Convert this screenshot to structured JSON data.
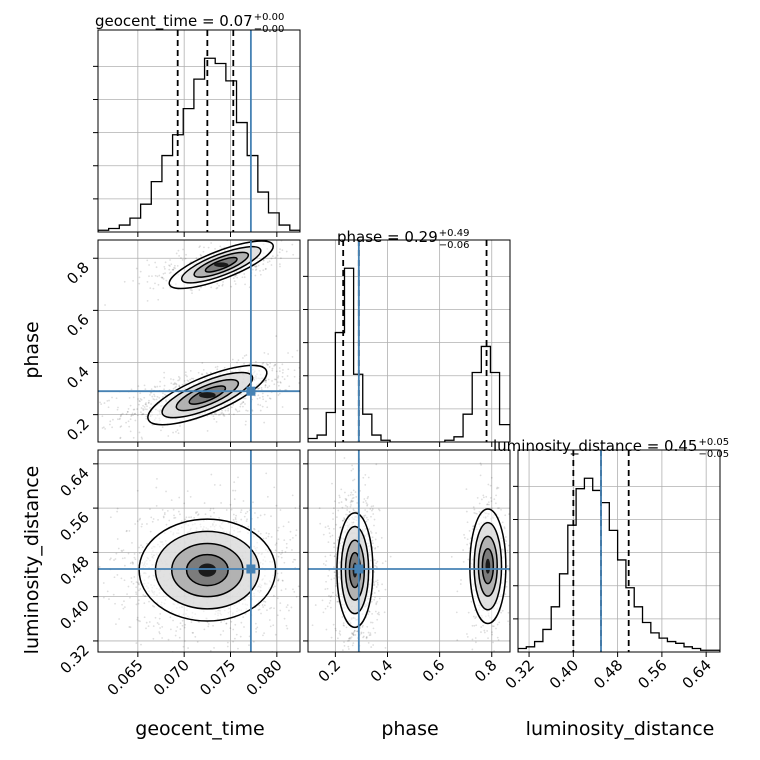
{
  "chart_data": {
    "type": "corner",
    "parameters": [
      "geocent_time",
      "phase",
      "luminosity_distance"
    ],
    "truth": {
      "geocent_time": 0.0772,
      "phase": 0.29,
      "luminosity_distance": 0.45
    },
    "titles": [
      {
        "param": "geocent_time",
        "main": "geocent_time = 0.07",
        "sup": "+0.00",
        "sub": "−0.00"
      },
      {
        "param": "phase",
        "main": "phase = 0.29",
        "sup": "+0.49",
        "sub": "−0.06"
      },
      {
        "param": "luminosity_distance",
        "main": "luminosity_distance = 0.45",
        "sup": "+0.05",
        "sub": "−0.05"
      }
    ],
    "axis_labels": {
      "x": [
        "geocent_time",
        "phase",
        "luminosity_distance"
      ],
      "y": [
        "phase",
        "luminosity_distance"
      ]
    },
    "ticks": {
      "geocent_time": {
        "values": [
          0.065,
          0.07,
          0.075,
          0.08
        ],
        "labels": [
          "0.065",
          "0.070",
          "0.075",
          "0.080"
        ],
        "range": [
          0.0607,
          0.0825
        ]
      },
      "phase": {
        "values": [
          0.2,
          0.4,
          0.6,
          0.8
        ],
        "labels": [
          "0.2",
          "0.4",
          "0.6",
          "0.8"
        ],
        "range": [
          0.095,
          0.87
        ]
      },
      "luminosity_distance": {
        "values": [
          0.32,
          0.4,
          0.48,
          0.56,
          0.64
        ],
        "labels": [
          "0.32",
          "0.40",
          "0.48",
          "0.56",
          "0.64"
        ],
        "range": [
          0.3,
          0.665
        ]
      }
    },
    "quantiles": {
      "geocent_time": [
        0.0693,
        0.0725,
        0.0753
      ],
      "phase": [
        0.23,
        0.29,
        0.78
      ],
      "luminosity_distance": [
        0.4,
        0.45,
        0.5
      ]
    },
    "histograms": {
      "geocent_time": {
        "edges": [
          0.0607,
          0.06185,
          0.063,
          0.06415,
          0.0653,
          0.06645,
          0.0676,
          0.06875,
          0.0699,
          0.07105,
          0.0722,
          0.07335,
          0.0745,
          0.07565,
          0.0768,
          0.07795,
          0.0791,
          0.08025,
          0.0814,
          0.0825
        ],
        "counts": [
          0.01,
          0.02,
          0.04,
          0.08,
          0.16,
          0.29,
          0.44,
          0.56,
          0.71,
          0.88,
          1.0,
          0.97,
          0.87,
          0.63,
          0.44,
          0.23,
          0.11,
          0.04,
          0.01
        ]
      },
      "phase": {
        "edges": [
          0.095,
          0.13,
          0.165,
          0.2,
          0.235,
          0.27,
          0.305,
          0.34,
          0.375,
          0.41,
          0.445,
          0.48,
          0.515,
          0.55,
          0.585,
          0.62,
          0.655,
          0.69,
          0.725,
          0.76,
          0.795,
          0.83,
          0.87
        ],
        "counts": [
          0.02,
          0.04,
          0.17,
          0.63,
          1.0,
          0.39,
          0.16,
          0.04,
          0.01,
          0.0,
          0.0,
          0.0,
          0.0,
          0.0,
          0.0,
          0.01,
          0.03,
          0.16,
          0.4,
          0.55,
          0.4,
          0.1
        ]
      },
      "luminosity_distance": {
        "edges": [
          0.3,
          0.315,
          0.33,
          0.345,
          0.36,
          0.375,
          0.39,
          0.405,
          0.42,
          0.435,
          0.45,
          0.465,
          0.48,
          0.495,
          0.51,
          0.525,
          0.54,
          0.555,
          0.57,
          0.585,
          0.6,
          0.615,
          0.63,
          0.645,
          0.665
        ],
        "counts": [
          0.02,
          0.03,
          0.06,
          0.13,
          0.26,
          0.45,
          0.73,
          0.94,
          1.0,
          0.93,
          0.86,
          0.7,
          0.53,
          0.37,
          0.26,
          0.17,
          0.11,
          0.08,
          0.06,
          0.05,
          0.03,
          0.02,
          0.01,
          0.01
        ]
      }
    },
    "density": {
      "phase_vs_geocent_time": {
        "modes": [
          {
            "x": 0.0725,
            "y": 0.275,
            "sx": 0.003,
            "sy": 0.04,
            "rho": 0.55,
            "weight": 0.72
          },
          {
            "x": 0.074,
            "y": 0.775,
            "sx": 0.0026,
            "sy": 0.03,
            "rho": 0.5,
            "weight": 0.28
          }
        ]
      },
      "luminosity_distance_vs_geocent_time": {
        "modes": [
          {
            "x": 0.0725,
            "y": 0.448,
            "sx": 0.0032,
            "sy": 0.04,
            "rho": 0.0,
            "weight": 1.0
          }
        ]
      },
      "luminosity_distance_vs_phase": {
        "modes": [
          {
            "x": 0.275,
            "y": 0.448,
            "sx": 0.03,
            "sy": 0.045,
            "rho": 0.0,
            "weight": 0.68
          },
          {
            "x": 0.785,
            "y": 0.455,
            "sx": 0.03,
            "sy": 0.045,
            "rho": 0.0,
            "weight": 0.32
          }
        ]
      }
    },
    "colors": {
      "truth": "#4682b4",
      "hist": "#000000",
      "grid": "#b0b0b0",
      "scatter": "#000000"
    },
    "grid": true
  }
}
